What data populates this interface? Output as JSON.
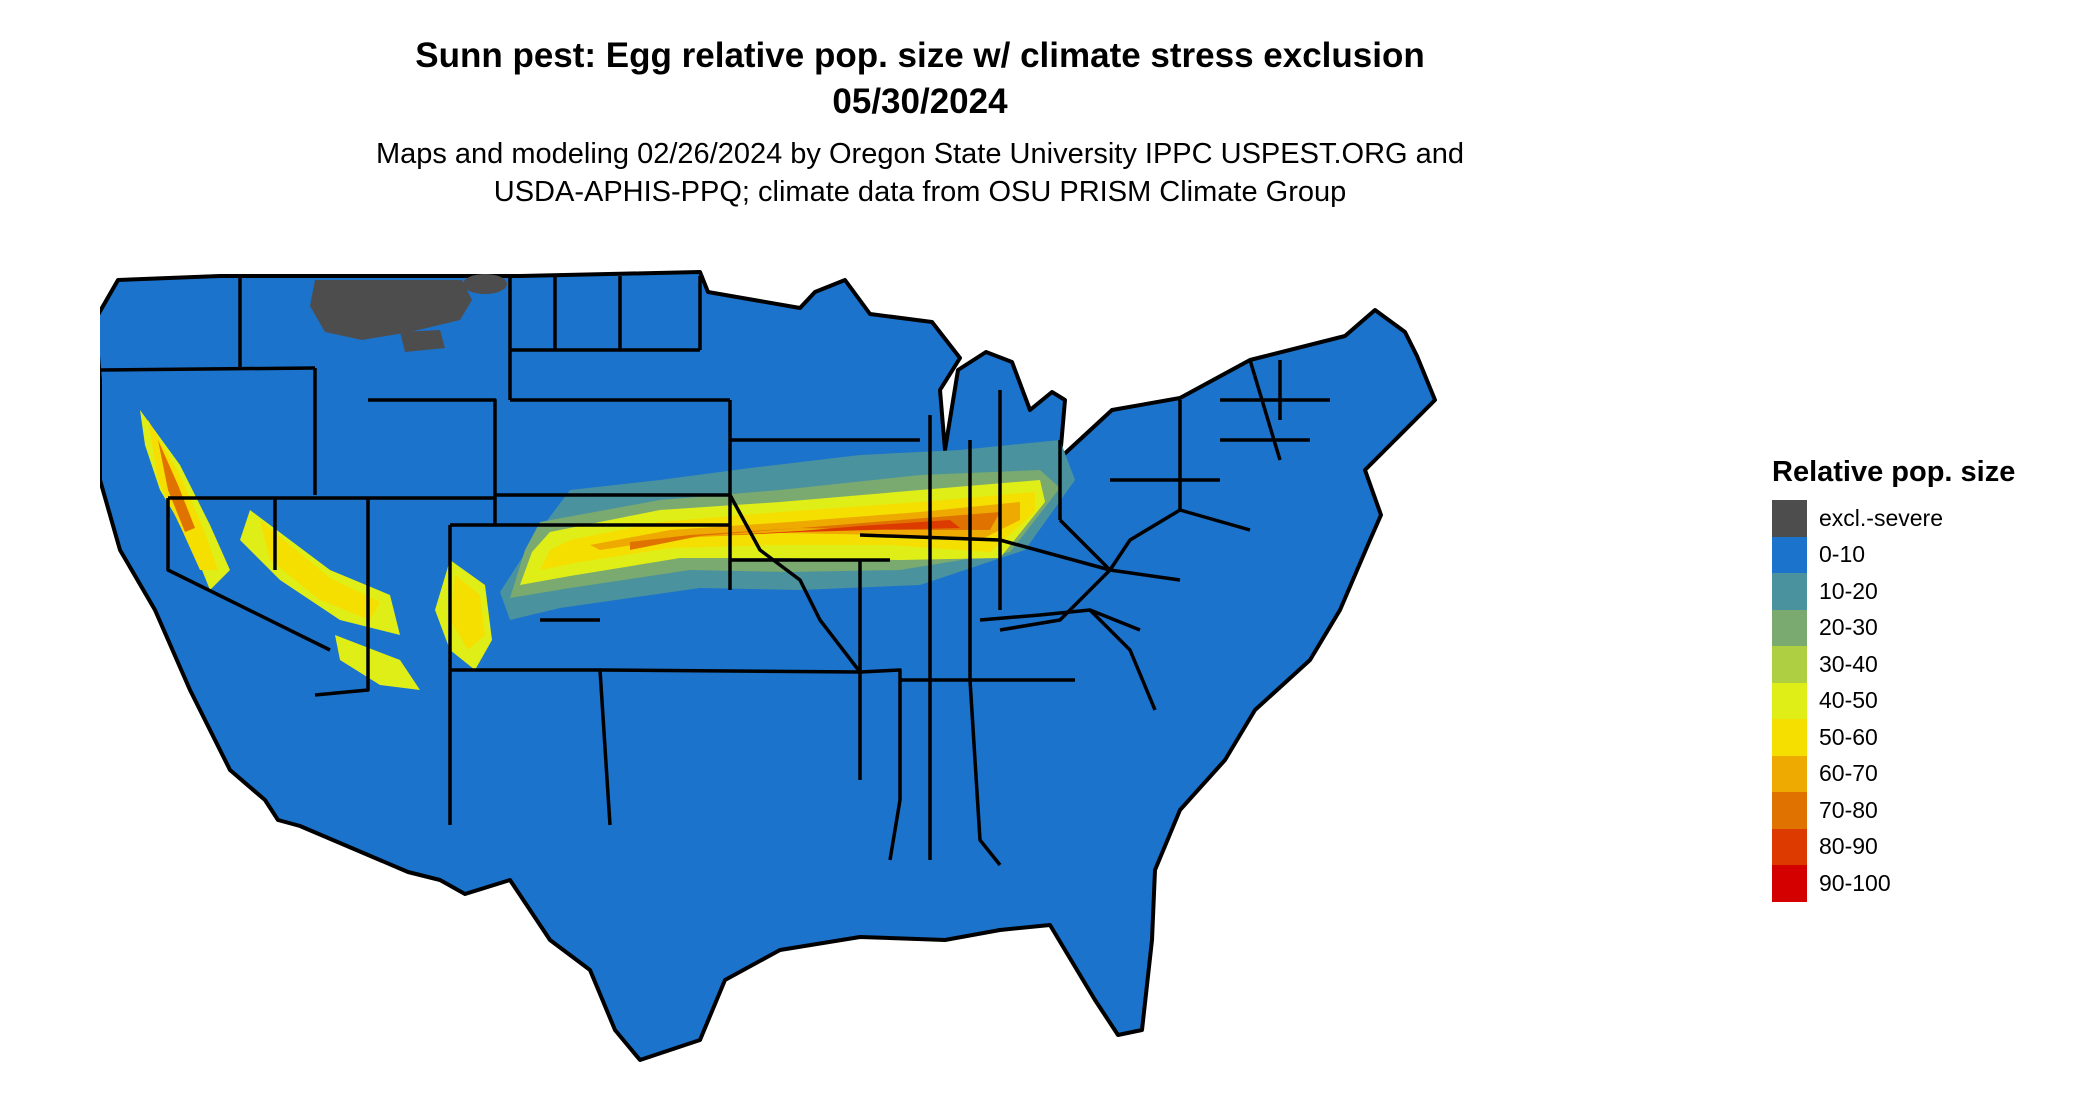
{
  "title": {
    "line1": "Sunn pest: Egg relative pop. size w/ climate stress exclusion",
    "line2": "05/30/2024"
  },
  "subtitle": {
    "line1": "Maps and modeling 02/26/2024 by Oregon State University IPPC USPEST.ORG and",
    "line2": "USDA-APHIS-PPQ; climate data from OSU PRISM Climate Group"
  },
  "legend": {
    "title": "Relative pop. size",
    "items": [
      {
        "label": "excl.-severe",
        "color": "#4d4d4d"
      },
      {
        "label": "0-10",
        "color": "#1b73cc"
      },
      {
        "label": "10-20",
        "color": "#4a929e"
      },
      {
        "label": "20-30",
        "color": "#7aaa70"
      },
      {
        "label": "30-40",
        "color": "#aecf41"
      },
      {
        "label": "40-50",
        "color": "#e0ee18"
      },
      {
        "label": "50-60",
        "color": "#f5df00"
      },
      {
        "label": "60-70",
        "color": "#eeaa00"
      },
      {
        "label": "70-80",
        "color": "#e07300"
      },
      {
        "label": "80-90",
        "color": "#dd3a00"
      },
      {
        "label": "90-100",
        "color": "#d40000"
      }
    ]
  }
}
